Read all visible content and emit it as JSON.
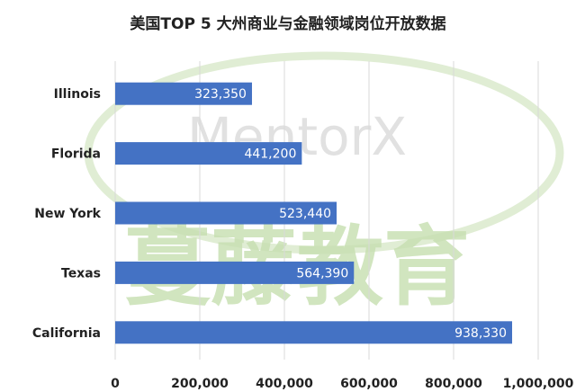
{
  "chart_data": {
    "type": "bar",
    "orientation": "horizontal",
    "title": "美国TOP 5 大州商业与金融领域岗位开放数据",
    "categories": [
      "Illinois",
      "Florida",
      "New York",
      "Texas",
      "California"
    ],
    "values": [
      323350,
      441200,
      523440,
      564390,
      938330
    ],
    "value_labels": [
      "323,350",
      "441,200",
      "523,440",
      "564,390",
      "938,330"
    ],
    "xlim": [
      0,
      1000000
    ],
    "x_ticks": [
      0,
      200000,
      400000,
      600000,
      800000,
      1000000
    ],
    "x_tick_labels": [
      "0",
      "200,000",
      "400,000",
      "600,000",
      "800,000",
      "1,000,000"
    ],
    "grid": "vertical",
    "bar_color": "#4472C4",
    "grid_color": "#d9d9d9"
  },
  "watermark": {
    "latin": "MentorX",
    "chinese": "蔓藤教育",
    "color": "#c6dfb0"
  }
}
